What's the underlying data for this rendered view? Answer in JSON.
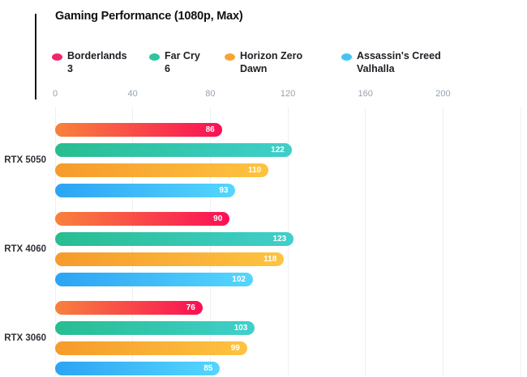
{
  "chart_data": {
    "type": "bar",
    "orientation": "horizontal",
    "title": "Gaming Performance (1080p, Max)",
    "categories": [
      "RTX 5050",
      "RTX 4060",
      "RTX 3060"
    ],
    "series": [
      {
        "name": "Borderlands 3",
        "legend_lines": "Borderlands\n3",
        "values": [
          86,
          90,
          76
        ],
        "dot_color": "#f2256b",
        "gradient": [
          "#f8823c",
          "#fa0f55"
        ]
      },
      {
        "name": "Far Cry 6",
        "legend_lines": "Far Cry\n6",
        "values": [
          122,
          123,
          103
        ],
        "dot_color": "#2dc49e",
        "gradient": [
          "#28bd90",
          "#40cfcb"
        ]
      },
      {
        "name": "Horizon Zero Dawn",
        "legend_lines": "Horizon Zero\nDawn",
        "values": [
          110,
          118,
          99
        ],
        "dot_color": "#f6a433",
        "gradient": [
          "#f69b2b",
          "#fdc340"
        ]
      },
      {
        "name": "Assassin's Creed Valhalla",
        "legend_lines": "Assassin's Creed\nValhalla",
        "values": [
          93,
          102,
          85
        ],
        "dot_color": "#45c3f2",
        "gradient": [
          "#2ba4f4",
          "#55d6fd"
        ]
      }
    ],
    "x_ticks": [
      0,
      40,
      80,
      120,
      160,
      200
    ],
    "x_gridlines": [
      0,
      40,
      80,
      120,
      160,
      200,
      240
    ],
    "x_max": 243.3,
    "grid": true,
    "legend_position": "top",
    "value_label_color": "#ffffff",
    "axis_label_color": "#98a3b0",
    "accent_line_color": "#141414"
  }
}
